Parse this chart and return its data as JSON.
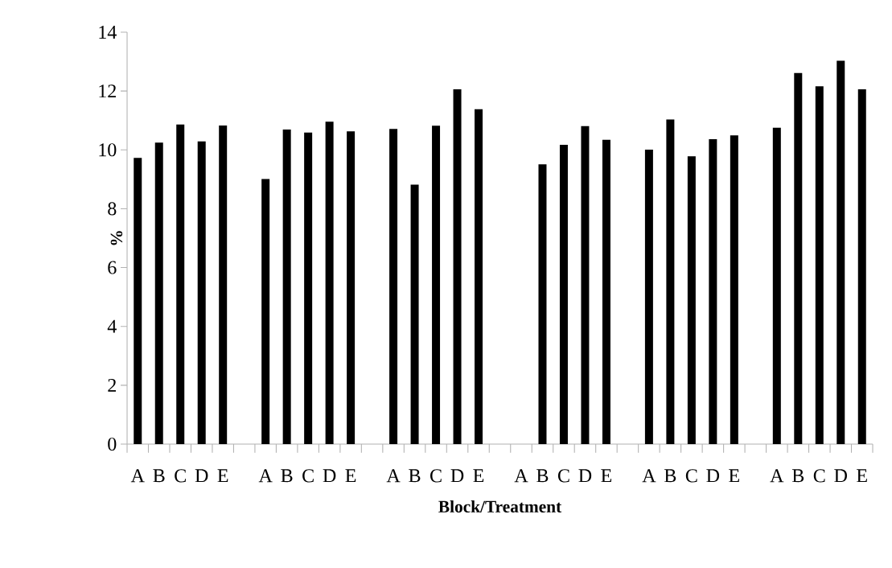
{
  "chart_data": {
    "type": "bar",
    "xlabel": "Block/Treatment",
    "ylabel": "%",
    "categories": [
      "A",
      "B",
      "C",
      "D",
      "E",
      null,
      "A",
      "B",
      "C",
      "D",
      "E",
      null,
      "A",
      "B",
      "C",
      "D",
      "E",
      null,
      "A",
      "B",
      "C",
      "D",
      "E",
      null,
      "A",
      "B",
      "C",
      "D",
      "E",
      null,
      "A",
      "B",
      "C",
      "D",
      "E"
    ],
    "values": [
      9.73,
      10.25,
      10.86,
      10.29,
      10.83,
      null,
      9.01,
      10.69,
      10.59,
      10.96,
      10.63,
      null,
      10.71,
      8.82,
      10.82,
      12.06,
      11.38,
      null,
      null,
      9.51,
      10.17,
      10.81,
      10.34,
      null,
      10.01,
      11.03,
      9.78,
      10.36,
      10.49,
      null,
      10.75,
      12.61,
      12.16,
      13.03,
      12.06
    ],
    "color": "#000000",
    "ylim": [
      0,
      14
    ],
    "yticks": [
      0,
      2,
      4,
      6,
      8,
      10,
      12,
      14
    ]
  }
}
